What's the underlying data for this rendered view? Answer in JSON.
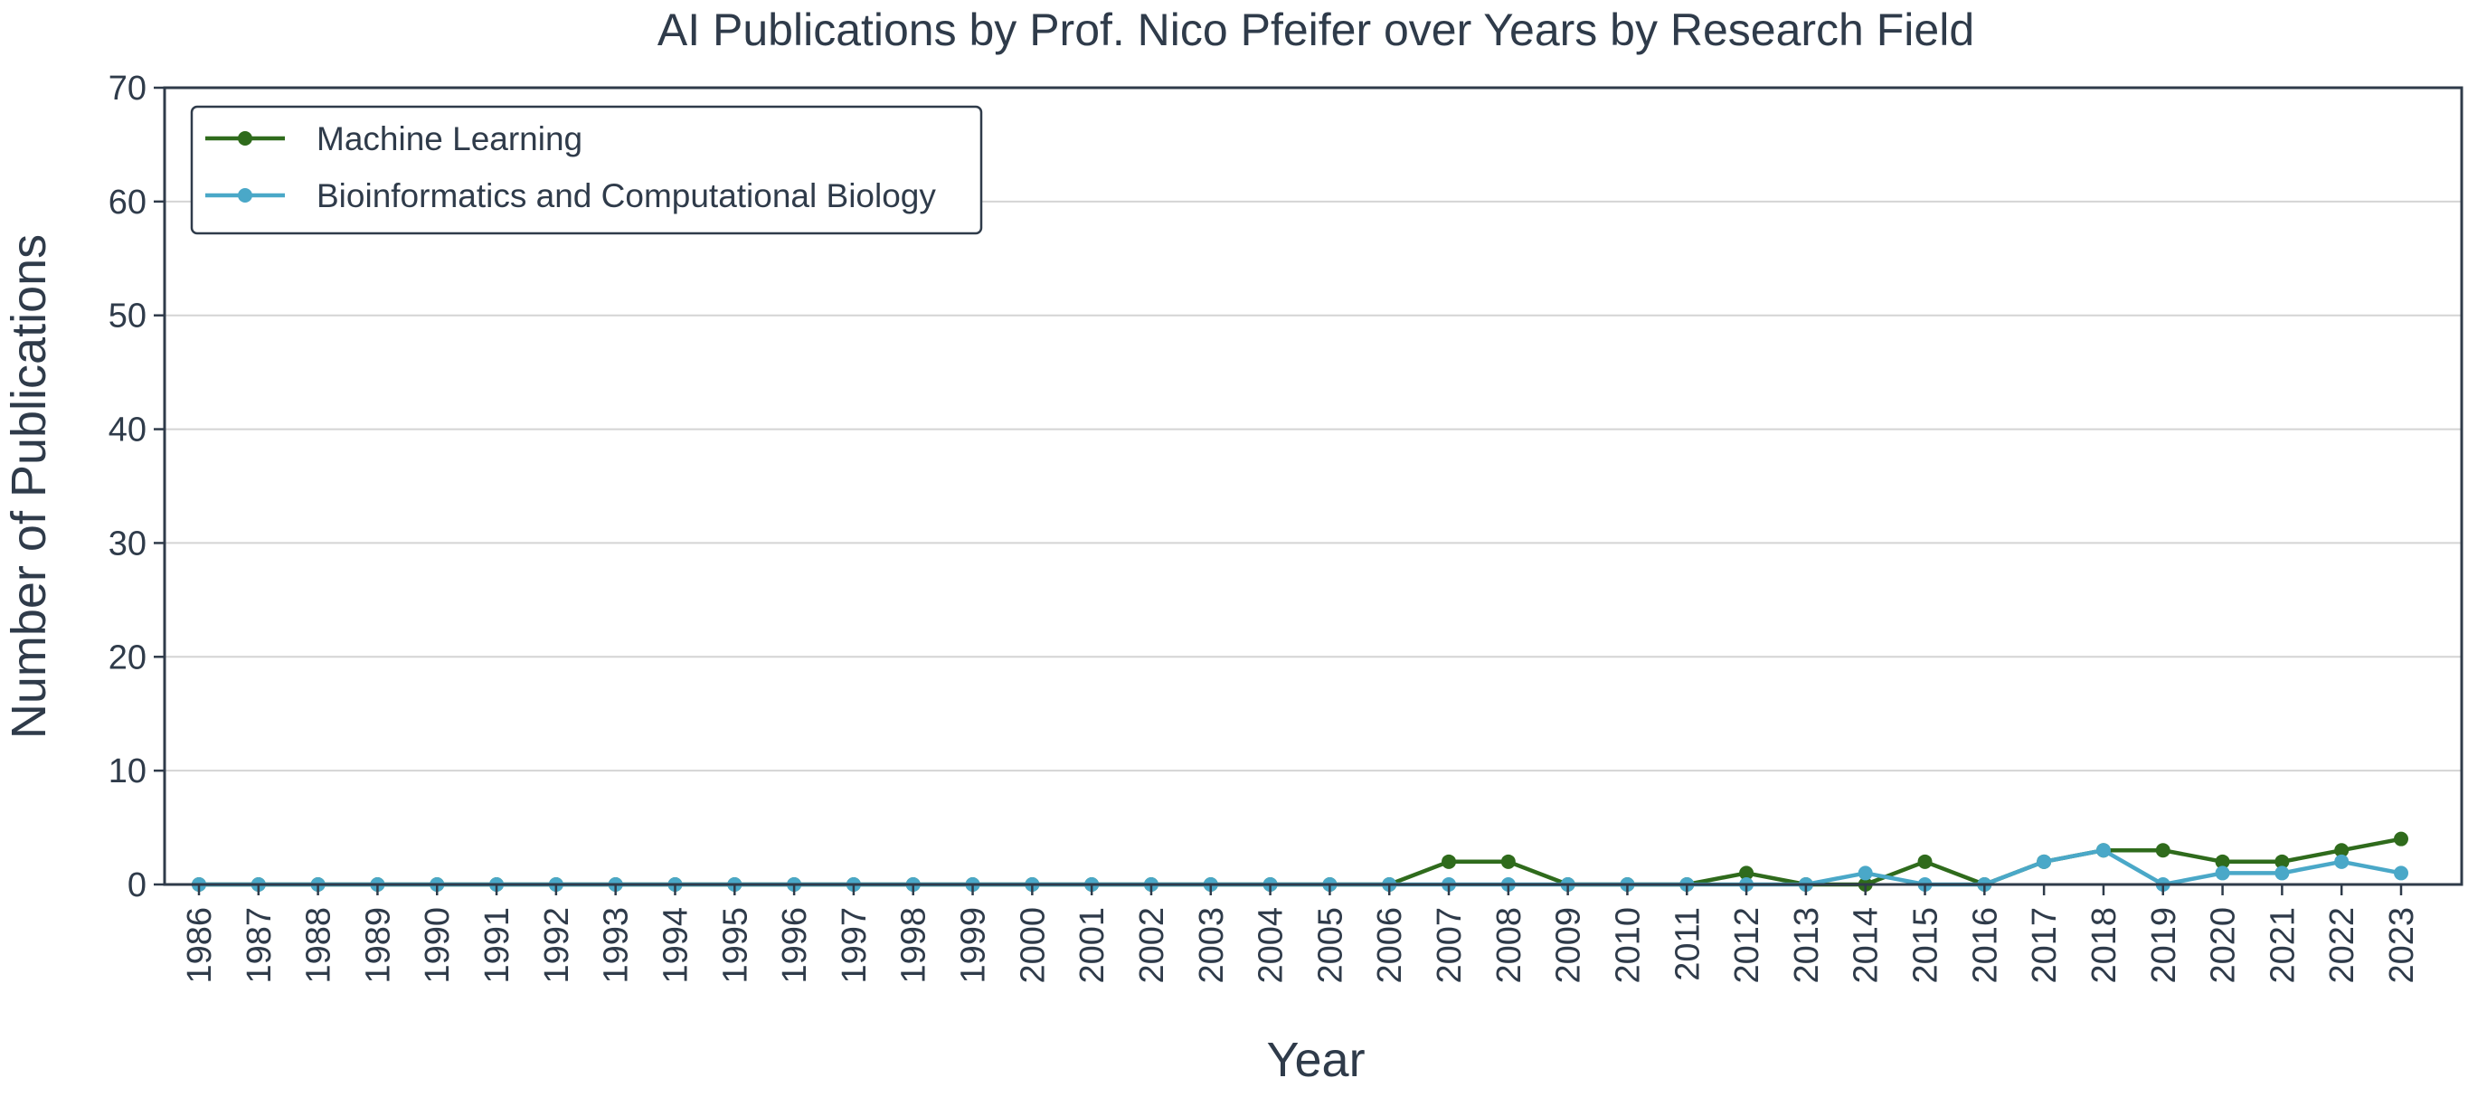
{
  "chart_data": {
    "type": "line",
    "title": "AI Publications by Prof. Nico Pfeifer over Years by Research Field",
    "xlabel": "Year",
    "ylabel": "Number of Publications",
    "ylim": [
      0,
      70
    ],
    "yticks": [
      0,
      10,
      20,
      30,
      40,
      50,
      60,
      70
    ],
    "grid": "horizontal",
    "legend_position": "top-left",
    "x": [
      "1986",
      "1987",
      "1988",
      "1989",
      "1990",
      "1991",
      "1992",
      "1993",
      "1994",
      "1995",
      "1996",
      "1997",
      "1998",
      "1999",
      "2000",
      "2001",
      "2002",
      "2003",
      "2004",
      "2005",
      "2006",
      "2007",
      "2008",
      "2009",
      "2010",
      "2011",
      "2012",
      "2013",
      "2014",
      "2015",
      "2016",
      "2017",
      "2018",
      "2019",
      "2020",
      "2021",
      "2022",
      "2023"
    ],
    "series": [
      {
        "name": "Machine Learning",
        "color": "#2f6b1c",
        "values": [
          0,
          0,
          0,
          0,
          0,
          0,
          0,
          0,
          0,
          0,
          0,
          0,
          0,
          0,
          0,
          0,
          0,
          0,
          0,
          0,
          0,
          2,
          2,
          0,
          0,
          0,
          1,
          0,
          0,
          2,
          0,
          2,
          3,
          3,
          2,
          2,
          3,
          4
        ]
      },
      {
        "name": "Bioinformatics and Computational Biology",
        "color": "#4aa8c8",
        "values": [
          0,
          0,
          0,
          0,
          0,
          0,
          0,
          0,
          0,
          0,
          0,
          0,
          0,
          0,
          0,
          0,
          0,
          0,
          0,
          0,
          0,
          0,
          0,
          0,
          0,
          0,
          0,
          0,
          1,
          0,
          0,
          2,
          3,
          0,
          1,
          1,
          2,
          1
        ]
      }
    ]
  }
}
